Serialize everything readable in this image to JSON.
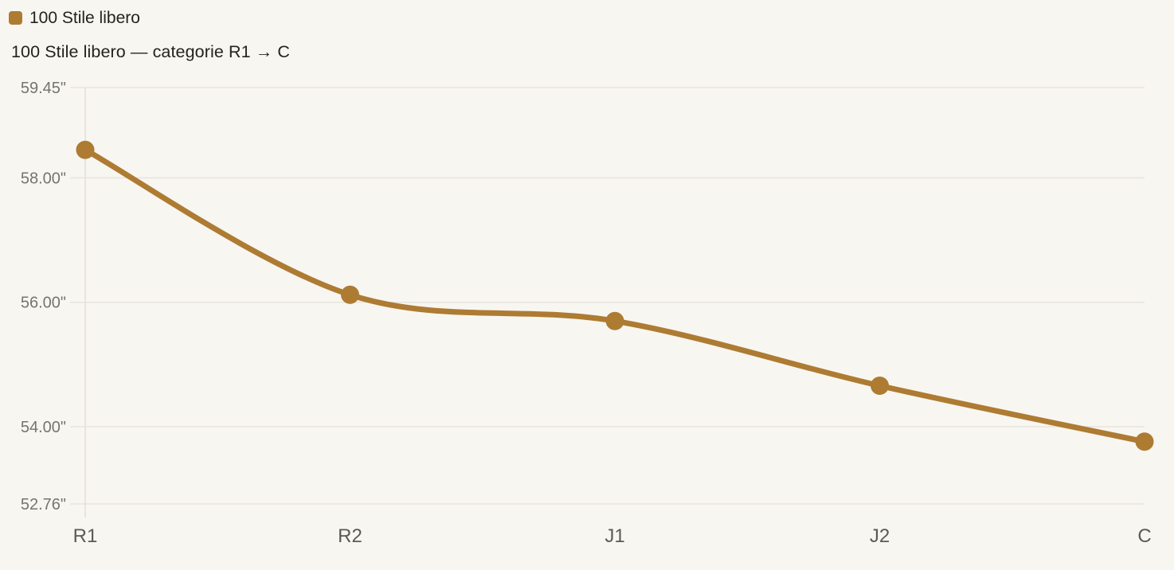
{
  "legend": {
    "label": "100 Stile libero",
    "swatch_color": "#AE7B33"
  },
  "title": "100 Stile libero — categorie R1 → C",
  "colors": {
    "background": "#F8F6F1",
    "grid": "#E7E4DE",
    "axis": "#E2DFD9",
    "tick_y": "#76746F",
    "tick_x": "#5C5A55",
    "text": "#24231E",
    "series": "#AE7B33"
  },
  "chart_data": {
    "type": "line",
    "title": "100 Stile libero — categorie R1 → C",
    "xlabel": "",
    "ylabel": "",
    "unit": "\"",
    "categories": [
      "R1",
      "R2",
      "J1",
      "J2",
      "C"
    ],
    "series": [
      {
        "name": "100 Stile libero",
        "color": "#AE7B33",
        "values": [
          58.45,
          56.12,
          55.7,
          54.66,
          53.76
        ]
      }
    ],
    "y_ticks": [
      {
        "value": 59.45,
        "label": "59.45\""
      },
      {
        "value": 58.0,
        "label": "58.00\""
      },
      {
        "value": 56.0,
        "label": "56.00\""
      },
      {
        "value": 54.0,
        "label": "54.00\""
      },
      {
        "value": 52.76,
        "label": "52.76\""
      }
    ],
    "ylim": [
      52.76,
      59.45
    ],
    "grid": "horizontal",
    "legend_position": "top-left",
    "marker": "circle",
    "smooth": true
  }
}
